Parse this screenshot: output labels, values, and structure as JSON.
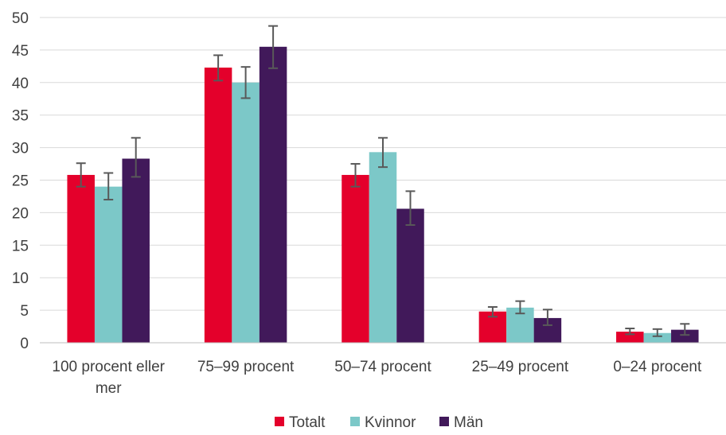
{
  "chart_data": {
    "type": "bar",
    "categories": [
      "100 procent eller mer",
      "75–99 procent",
      "50–74 procent",
      "25–49 procent",
      "0–24 procent"
    ],
    "category_lines": [
      [
        "100 procent eller",
        "mer"
      ],
      [
        "75–99 procent"
      ],
      [
        "50–74 procent"
      ],
      [
        "25–49 procent"
      ],
      [
        "0–24 procent"
      ]
    ],
    "series": [
      {
        "name": "Totalt",
        "color": "#E4002B",
        "values": [
          25.8,
          42.3,
          25.8,
          4.8,
          1.7
        ],
        "error_low": [
          24.0,
          40.3,
          24.0,
          4.0,
          1.3
        ],
        "error_high": [
          27.6,
          44.2,
          27.5,
          5.5,
          2.2
        ]
      },
      {
        "name": "Kvinnor",
        "color": "#7CC8C8",
        "values": [
          24.0,
          40.0,
          29.3,
          5.4,
          1.5
        ],
        "error_low": [
          22.0,
          37.6,
          27.0,
          4.5,
          1.0
        ],
        "error_high": [
          26.1,
          42.4,
          31.5,
          6.4,
          2.1
        ]
      },
      {
        "name": "Män",
        "color": "#41195A",
        "values": [
          28.3,
          45.5,
          20.6,
          3.8,
          2.0
        ],
        "error_low": [
          25.5,
          42.2,
          18.1,
          2.7,
          1.2
        ],
        "error_high": [
          31.5,
          48.7,
          23.3,
          5.1,
          2.9
        ]
      }
    ],
    "ylim": [
      0,
      50
    ],
    "yticks": [
      0,
      5,
      10,
      15,
      20,
      25,
      30,
      35,
      40,
      45,
      50
    ],
    "grid": true,
    "legend_position": "bottom",
    "error_bar_color": "#595959",
    "xlabel": "",
    "ylabel": "",
    "title": ""
  }
}
